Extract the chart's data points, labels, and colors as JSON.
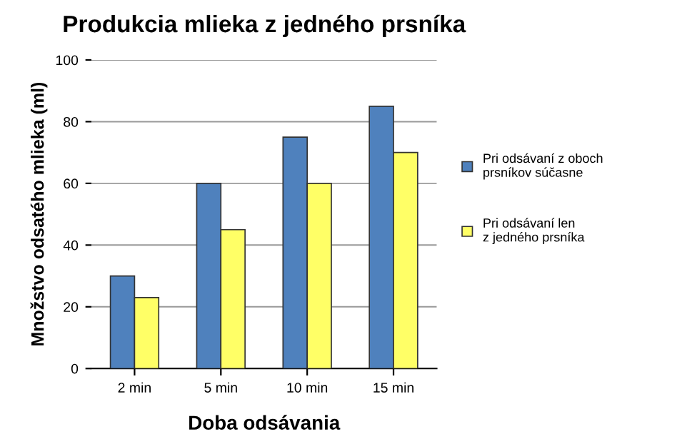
{
  "chart_data": {
    "type": "bar",
    "title": "Produkcia mlieka z jedného prsníka",
    "xlabel": "Doba odsávania",
    "ylabel": "Množstvo odsatého mlieka (ml)",
    "categories": [
      "2 min",
      "5 min",
      "10 min",
      "15 min"
    ],
    "series": [
      {
        "name": "Pri odsávaní z oboch\nprsníkov súčasne",
        "color": "#4f81bd",
        "values": [
          30,
          60,
          75,
          85
        ]
      },
      {
        "name": "Pri odsávaní len\nz jedného prsníka",
        "color": "#ffff66",
        "values": [
          23,
          45,
          60,
          70
        ]
      }
    ],
    "ylim": [
      0,
      100
    ],
    "yticks": [
      0,
      20,
      40,
      60,
      80,
      100
    ],
    "grid": "y",
    "legend": "right"
  }
}
